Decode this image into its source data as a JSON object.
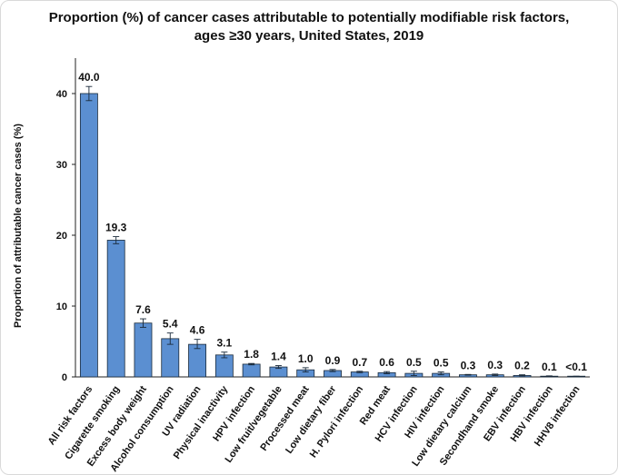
{
  "chart_data": {
    "type": "bar",
    "title_lines": [
      "Proportion (%) of cancer cases attributable to potentially modifiable risk factors,",
      "ages ≥30 years, United States, 2019"
    ],
    "xlabel": "",
    "ylabel": "Proportion of attributable cancer cases (%)",
    "ylim": [
      0,
      45
    ],
    "yticks": [
      0,
      10,
      20,
      30,
      40
    ],
    "categories": [
      "All risk factors",
      "Cigarette smoking",
      "Excess body weight",
      "Alcohol consumption",
      "UV radiation",
      "Physical inactivity",
      "HPV infection",
      "Low fruit/vegetable",
      "Processed meat",
      "Low dietary fiber",
      "H. Pylori infection",
      "Red meat",
      "HCV infection",
      "HIV infection",
      "Low dietary calcium",
      "Secondhand smoke",
      "EBV infection",
      "HBV infection",
      "HHV8 infection"
    ],
    "values": [
      40.0,
      19.3,
      7.6,
      5.4,
      4.6,
      3.1,
      1.8,
      1.4,
      1.0,
      0.9,
      0.7,
      0.6,
      0.5,
      0.5,
      0.3,
      0.3,
      0.2,
      0.1,
      0.05
    ],
    "value_labels": [
      "40.0",
      "19.3",
      "7.6",
      "5.4",
      "4.6",
      "3.1",
      "1.8",
      "1.4",
      "1.0",
      "0.9",
      "0.7",
      "0.6",
      "0.5",
      "0.5",
      "0.3",
      "0.3",
      "0.2",
      "0.1",
      "<0.1"
    ],
    "error_low": [
      39.0,
      18.8,
      7.0,
      4.6,
      4.0,
      2.7,
      1.7,
      1.2,
      0.7,
      0.75,
      0.6,
      0.45,
      0.2,
      0.3,
      0.25,
      0.2,
      0.15,
      0.08,
      0.0
    ],
    "error_high": [
      41.0,
      19.8,
      8.2,
      6.2,
      5.3,
      3.5,
      1.9,
      1.6,
      1.3,
      1.05,
      0.8,
      0.75,
      0.8,
      0.7,
      0.35,
      0.4,
      0.3,
      0.15,
      0.1
    ],
    "bar_color": "#5b8fd1",
    "bar_edge_color": "#1a2a3a",
    "grid": false,
    "legend": "none"
  }
}
